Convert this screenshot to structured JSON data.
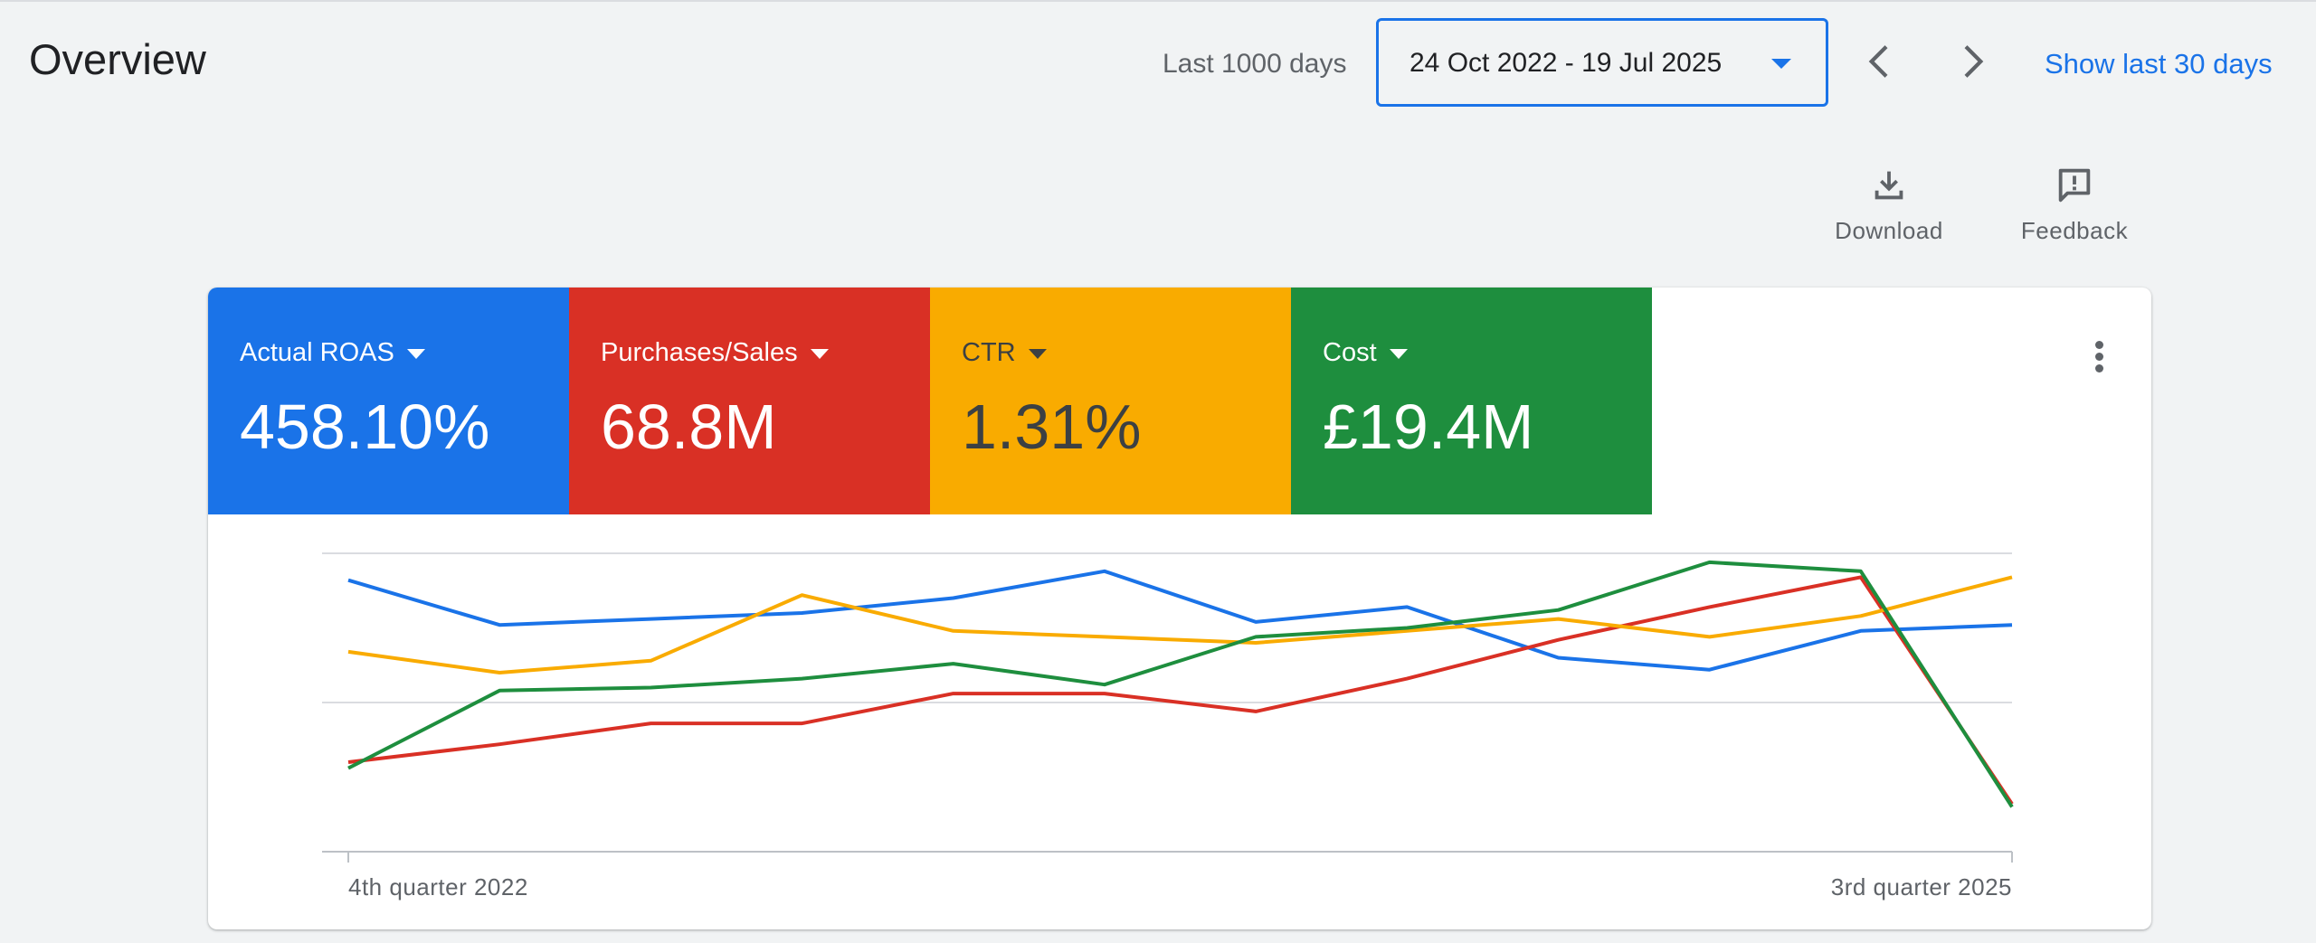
{
  "header": {
    "title": "Overview",
    "range_label": "Last 1000 days",
    "date_range": "24 Oct 2022 - 19 Jul 2025",
    "show_last": "Show last 30 days"
  },
  "toolbar": {
    "download_label": "Download",
    "feedback_label": "Feedback"
  },
  "metrics": [
    {
      "name": "Actual ROAS",
      "value": "458.10%",
      "color": "#1a73e8"
    },
    {
      "name": "Purchases/Sales",
      "value": "68.8M",
      "color": "#d93025"
    },
    {
      "name": "CTR",
      "value": "1.31%",
      "color": "#f9ab00"
    },
    {
      "name": "Cost",
      "value": "£19.4M",
      "color": "#1e8e3e"
    }
  ],
  "icons": [
    "chevron-left-icon",
    "chevron-right-icon",
    "download-icon",
    "feedback-icon",
    "more-vert-icon",
    "dropdown-arrow-icon"
  ],
  "chart_data": {
    "type": "line",
    "x_tick_labels": [
      "4th quarter 2022",
      "3rd quarter 2025"
    ],
    "x": [
      0,
      1,
      2,
      3,
      4,
      5,
      6,
      7,
      8,
      9,
      10,
      11
    ],
    "ylim": [
      0,
      100
    ],
    "grid": true,
    "series": [
      {
        "name": "Actual ROAS",
        "color": "#1a73e8",
        "values": [
          91,
          76,
          78,
          80,
          85,
          94,
          77,
          82,
          65,
          61,
          74,
          76
        ]
      },
      {
        "name": "Purchases/Sales",
        "color": "#d93025",
        "values": [
          30,
          36,
          43,
          43,
          53,
          53,
          47,
          58,
          71,
          82,
          92,
          16
        ]
      },
      {
        "name": "CTR",
        "color": "#f9ab00",
        "values": [
          67,
          60,
          64,
          86,
          74,
          72,
          70,
          74,
          78,
          72,
          79,
          92
        ]
      },
      {
        "name": "Cost",
        "color": "#1e8e3e",
        "values": [
          28,
          54,
          55,
          58,
          63,
          56,
          72,
          75,
          81,
          97,
          94,
          15
        ]
      }
    ]
  }
}
